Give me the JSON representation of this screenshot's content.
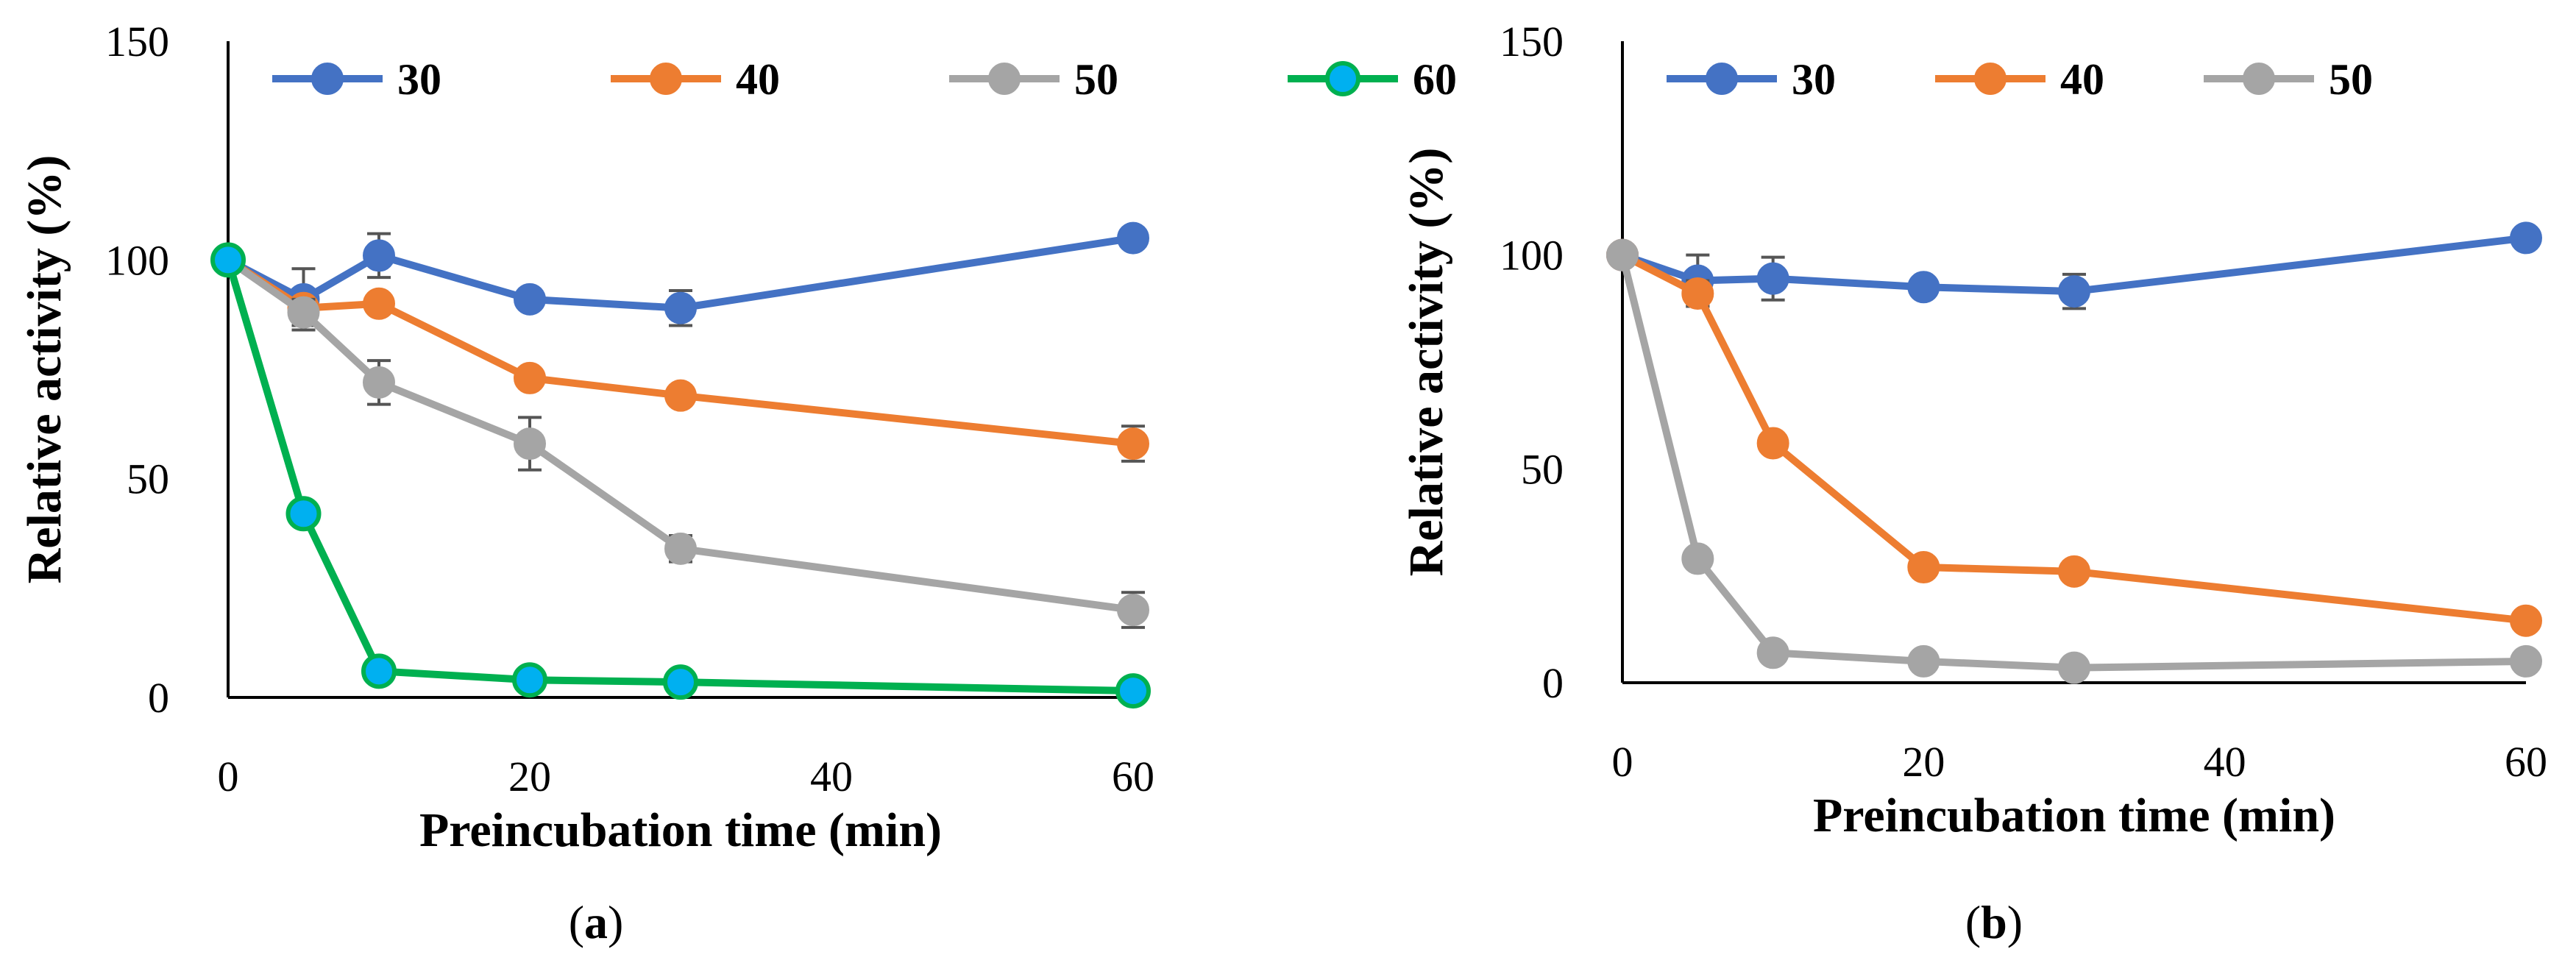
{
  "chart_data": [
    {
      "type": "line",
      "panel": "a",
      "caption_open": "(",
      "caption_letter": "a",
      "caption_close": ")",
      "xlabel": "Preincubation time (min)",
      "ylabel": "Relative activity (%)",
      "xlim": [
        0,
        60
      ],
      "ylim": [
        0,
        150
      ],
      "xticks": [
        0,
        20,
        40,
        60
      ],
      "yticks": [
        0,
        50,
        100,
        150
      ],
      "legend_position": "top",
      "x": [
        0,
        5,
        10,
        20,
        30,
        60
      ],
      "series": [
        {
          "name": "30",
          "color": "#4472C4",
          "marker_fill": "#4472C4",
          "values": [
            100,
            91,
            101,
            91,
            89,
            105
          ],
          "errors": [
            0,
            7,
            5,
            2,
            4,
            2
          ]
        },
        {
          "name": "40",
          "color": "#ED7D31",
          "marker_fill": "#ED7D31",
          "values": [
            100,
            89,
            90,
            73,
            69,
            58
          ],
          "errors": [
            0,
            2,
            2,
            2,
            2,
            4
          ]
        },
        {
          "name": "50",
          "color": "#A5A5A5",
          "marker_fill": "#A5A5A5",
          "values": [
            100,
            88,
            72,
            58,
            34,
            20
          ],
          "errors": [
            0,
            3,
            5,
            6,
            3,
            4
          ]
        },
        {
          "name": "60",
          "color": "#00B050",
          "marker_fill": "#00B0F0",
          "values": [
            100,
            42,
            6,
            4,
            3.5,
            1.5
          ],
          "errors": [
            0,
            1,
            1,
            1,
            1,
            0.5
          ]
        }
      ]
    },
    {
      "type": "line",
      "panel": "b",
      "caption_open": "(",
      "caption_letter": "b",
      "caption_close": ")",
      "xlabel": "Preincubation time (min)",
      "ylabel": "Relative activity (%)",
      "xlim": [
        0,
        60
      ],
      "ylim": [
        0,
        150
      ],
      "xticks": [
        0,
        20,
        40,
        60
      ],
      "yticks": [
        0,
        50,
        100,
        150
      ],
      "legend_position": "top",
      "x": [
        0,
        5,
        10,
        20,
        30,
        60
      ],
      "series": [
        {
          "name": "30",
          "color": "#4472C4",
          "marker_fill": "#4472C4",
          "values": [
            100,
            94,
            94.5,
            92.5,
            91.5,
            104
          ],
          "errors": [
            0,
            6,
            5,
            2,
            4,
            2
          ]
        },
        {
          "name": "40",
          "color": "#ED7D31",
          "marker_fill": "#ED7D31",
          "values": [
            100,
            91,
            56,
            27,
            26,
            14.5
          ],
          "errors": [
            0,
            3,
            2,
            2,
            2,
            1.5
          ]
        },
        {
          "name": "50",
          "color": "#A5A5A5",
          "marker_fill": "#A5A5A5",
          "values": [
            100,
            29,
            7,
            5,
            3.5,
            5
          ],
          "errors": [
            0,
            1,
            1,
            1,
            1,
            1
          ]
        }
      ]
    }
  ]
}
